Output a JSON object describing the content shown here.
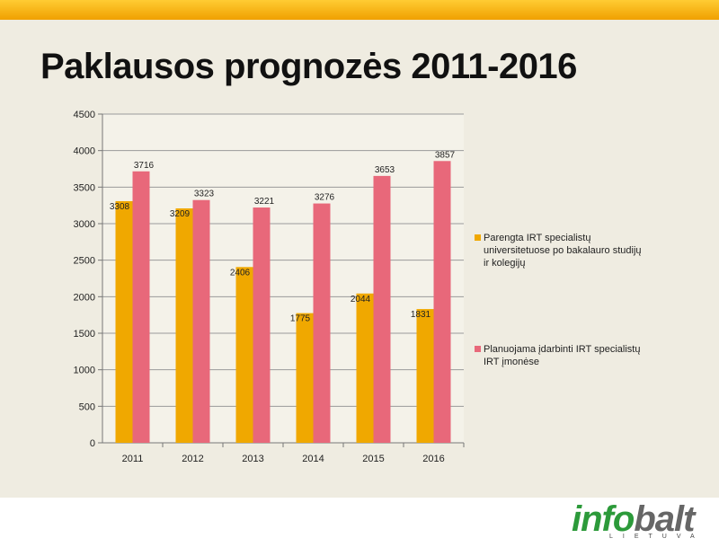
{
  "slide": {
    "title": "Paklausos prognozės 2011-2016"
  },
  "logo": {
    "part1": "info",
    "part2": "balt",
    "sub": "LIETUVA"
  },
  "colors": {
    "series1": "#f0a800",
    "series2": "#e8687a",
    "accent_bar": "#f5b400"
  },
  "chart_data": {
    "type": "bar",
    "categories": [
      "2011",
      "2012",
      "2013",
      "2014",
      "2015",
      "2016"
    ],
    "series": [
      {
        "name": "Parengta IRT specialistų universitetuose po bakalauro studijų ir kolegijų",
        "values": [
          3308,
          3209,
          2406,
          1775,
          2044,
          1831
        ]
      },
      {
        "name": "Planuojama įdarbinti IRT specialistų IRT įmonėse",
        "values": [
          3716,
          3323,
          3221,
          3276,
          3653,
          3857
        ]
      }
    ],
    "yticks": [
      "0",
      "500",
      "1000",
      "1500",
      "2000",
      "2500",
      "3000",
      "3500",
      "4000",
      "4500"
    ],
    "ylim": [
      0,
      4500
    ],
    "grid": true,
    "legend_position": "right"
  }
}
